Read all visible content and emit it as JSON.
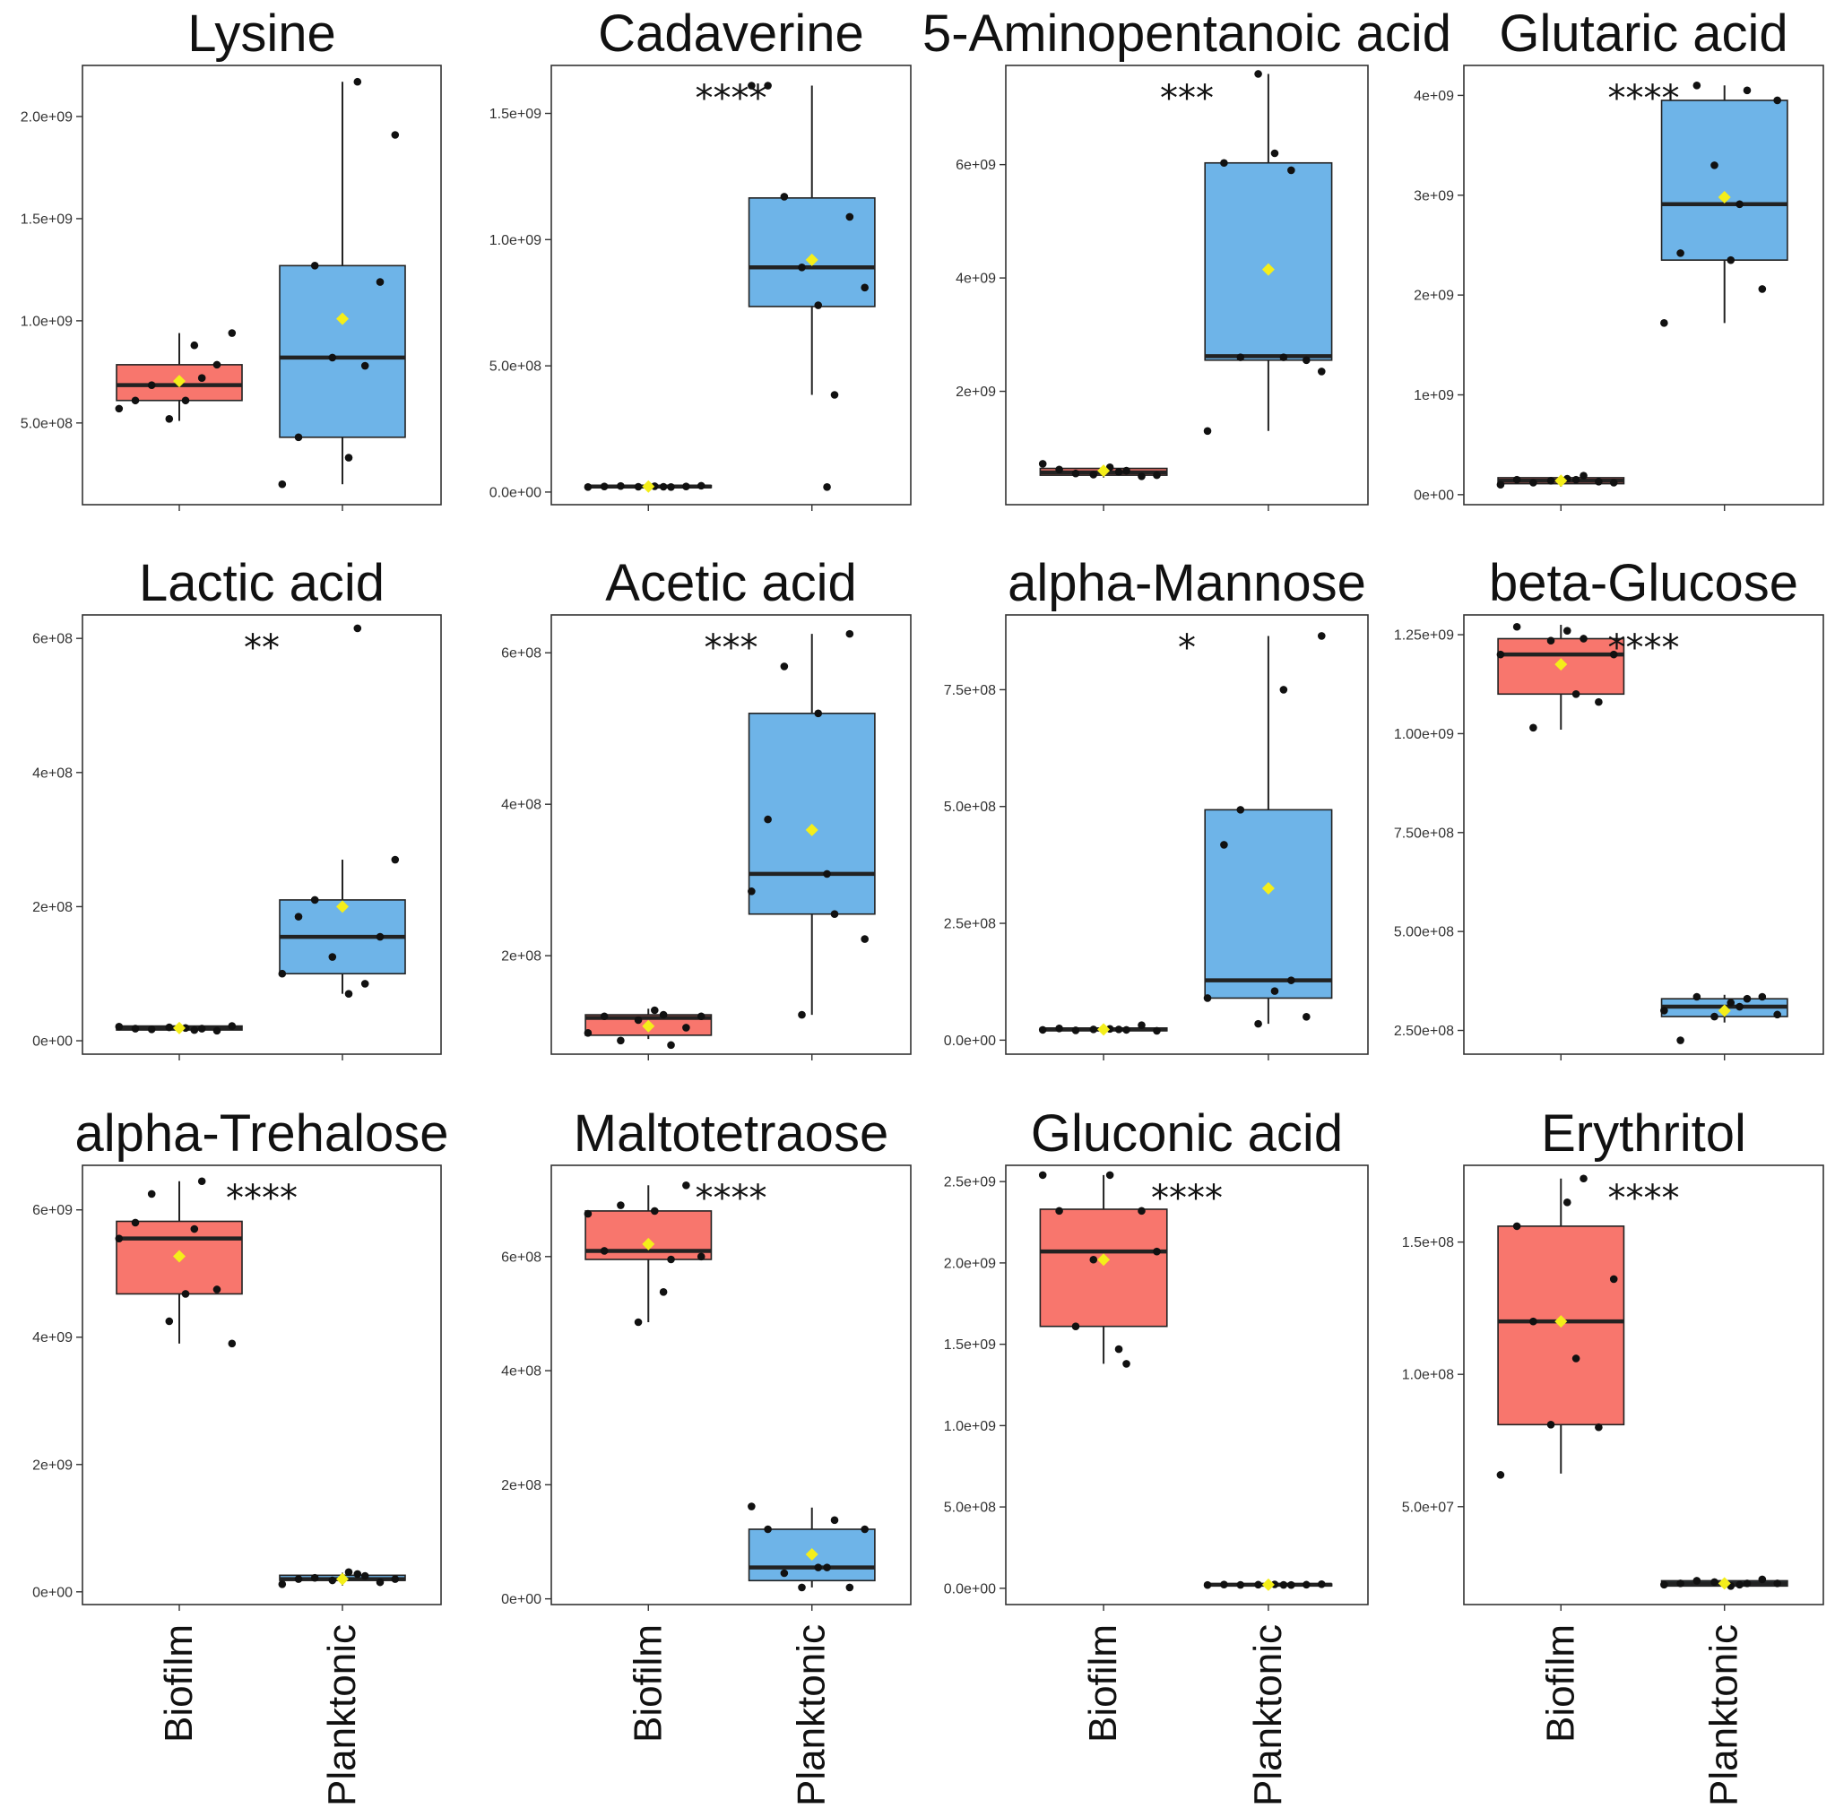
{
  "chart_data": [
    {
      "type": "boxplot",
      "title": "Lysine",
      "significance": "",
      "categories": [
        "Biofilm",
        "Planktonic"
      ],
      "ylim": [
        100000000.0,
        2250000000.0
      ],
      "yticks": [
        500000000.0,
        1000000000.0,
        1500000000.0,
        2000000000.0
      ],
      "ytick_labels": [
        "5.0e+08",
        "1.0e+09",
        "1.5e+09",
        "2.0e+09"
      ],
      "series": [
        {
          "name": "Biofilm",
          "color": "#f8766d",
          "q1": 610000000.0,
          "median": 685000000.0,
          "q3": 785000000.0,
          "whisker_low": 510000000.0,
          "whisker_high": 940000000.0,
          "mean": 705000000.0,
          "points": [
            570000000.0,
            610000000.0,
            685000000.0,
            520000000.0,
            610000000.0,
            720000000.0,
            785000000.0,
            940000000.0,
            880000000.0
          ]
        },
        {
          "name": "Planktonic",
          "color": "#6eb4e8",
          "q1": 430000000.0,
          "median": 820000000.0,
          "q3": 1270000000.0,
          "whisker_low": 200000000.0,
          "whisker_high": 2170000000.0,
          "mean": 1010000000.0,
          "points": [
            200000000.0,
            430000000.0,
            1270000000.0,
            820000000.0,
            330000000.0,
            780000000.0,
            1190000000.0,
            1910000000.0,
            2170000000.0
          ]
        }
      ]
    },
    {
      "type": "boxplot",
      "title": "Cadaverine",
      "significance": "****",
      "categories": [
        "Biofilm",
        "Planktonic"
      ],
      "ylim": [
        -50000000.0,
        1690000000.0
      ],
      "yticks": [
        0,
        500000000.0,
        1000000000.0,
        1500000000.0
      ],
      "ytick_labels": [
        "0.0e+00",
        "5.0e+08",
        "1.0e+09",
        "1.5e+09"
      ],
      "series": [
        {
          "name": "Biofilm",
          "color": "#f8766d",
          "q1": 18000000.0,
          "median": 22000000.0,
          "q3": 26000000.0,
          "whisker_low": 15000000.0,
          "whisker_high": 30000000.0,
          "mean": 22000000.0,
          "points": [
            20000000.0,
            22000000.0,
            24000000.0,
            21000000.0,
            23000000.0,
            20000000.0,
            22000000.0,
            25000000.0,
            21000000.0
          ]
        },
        {
          "name": "Planktonic",
          "color": "#6eb4e8",
          "q1": 735000000.0,
          "median": 890000000.0,
          "q3": 1165000000.0,
          "whisker_low": 385000000.0,
          "whisker_high": 1610000000.0,
          "mean": 920000000.0,
          "points": [
            1610000000.0,
            1610000000.0,
            1170000000.0,
            890000000.0,
            740000000.0,
            385000000.0,
            1090000000.0,
            810000000.0,
            20000000.0
          ]
        }
      ]
    },
    {
      "type": "boxplot",
      "title": "5-Aminopentanoic acid",
      "significance": "***",
      "categories": [
        "Biofilm",
        "Planktonic"
      ],
      "ylim": [
        0,
        7750000000.0
      ],
      "yticks": [
        2000000000.0,
        4000000000.0,
        6000000000.0
      ],
      "ytick_labels": [
        "2e+09",
        "4e+09",
        "6e+09"
      ],
      "series": [
        {
          "name": "Biofilm",
          "color": "#f8766d",
          "q1": 520000000.0,
          "median": 570000000.0,
          "q3": 640000000.0,
          "whisker_low": 480000000.0,
          "whisker_high": 680000000.0,
          "mean": 600000000.0,
          "points": [
            720000000.0,
            620000000.0,
            550000000.0,
            530000000.0,
            660000000.0,
            600000000.0,
            500000000.0,
            520000000.0,
            580000000.0
          ]
        },
        {
          "name": "Planktonic",
          "color": "#6eb4e8",
          "q1": 2550000000.0,
          "median": 2620000000.0,
          "q3": 6030000000.0,
          "whisker_low": 1300000000.0,
          "whisker_high": 7600000000.0,
          "mean": 4150000000.0,
          "points": [
            1300000000.0,
            6030000000.0,
            2600000000.0,
            7600000000.0,
            6200000000.0,
            5900000000.0,
            2550000000.0,
            2350000000.0,
            2600000000.0
          ]
        }
      ]
    },
    {
      "type": "boxplot",
      "title": "Glutaric acid",
      "significance": "****",
      "categories": [
        "Biofilm",
        "Planktonic"
      ],
      "ylim": [
        -100000000.0,
        4300000000.0
      ],
      "yticks": [
        0,
        1000000000.0,
        2000000000.0,
        3000000000.0,
        4000000000.0
      ],
      "ytick_labels": [
        "0e+00",
        "1e+09",
        "2e+09",
        "3e+09",
        "4e+09"
      ],
      "series": [
        {
          "name": "Biofilm",
          "color": "#f8766d",
          "q1": 110000000.0,
          "median": 140000000.0,
          "q3": 170000000.0,
          "whisker_low": 80000000.0,
          "whisker_high": 190000000.0,
          "mean": 140000000.0,
          "points": [
            100000000.0,
            150000000.0,
            120000000.0,
            140000000.0,
            160000000.0,
            190000000.0,
            130000000.0,
            120000000.0,
            150000000.0
          ]
        },
        {
          "name": "Planktonic",
          "color": "#6eb4e8",
          "q1": 2350000000.0,
          "median": 2910000000.0,
          "q3": 3950000000.0,
          "whisker_low": 1720000000.0,
          "whisker_high": 4100000000.0,
          "mean": 2980000000.0,
          "points": [
            1720000000.0,
            2420000000.0,
            4100000000.0,
            3300000000.0,
            2350000000.0,
            4050000000.0,
            2060000000.0,
            3950000000.0,
            2910000000.0
          ]
        }
      ]
    },
    {
      "type": "boxplot",
      "title": "Lactic acid",
      "significance": "**",
      "categories": [
        "Biofilm",
        "Planktonic"
      ],
      "ylim": [
        -20000000.0,
        635000000.0
      ],
      "yticks": [
        0,
        200000000.0,
        400000000.0,
        600000000.0
      ],
      "ytick_labels": [
        "0e+00",
        "2e+08",
        "4e+08",
        "6e+08"
      ],
      "series": [
        {
          "name": "Biofilm",
          "color": "#f8766d",
          "q1": 16000000.0,
          "median": 19000000.0,
          "q3": 22000000.0,
          "whisker_low": 13000000.0,
          "whisker_high": 25000000.0,
          "mean": 19000000.0,
          "points": [
            21000000.0,
            18000000.0,
            17000000.0,
            20000000.0,
            19000000.0,
            18000000.0,
            15000000.0,
            22000000.0,
            16000000.0
          ]
        },
        {
          "name": "Planktonic",
          "color": "#6eb4e8",
          "q1": 100000000.0,
          "median": 155000000.0,
          "q3": 210000000.0,
          "whisker_low": 70000000.0,
          "whisker_high": 270000000.0,
          "mean": 200000000.0,
          "points": [
            100000000.0,
            185000000.0,
            210000000.0,
            125000000.0,
            70000000.0,
            85000000.0,
            155000000.0,
            270000000.0,
            615000000.0
          ]
        }
      ]
    },
    {
      "type": "boxplot",
      "title": "Acetic acid",
      "significance": "***",
      "categories": [
        "Biofilm",
        "Planktonic"
      ],
      "ylim": [
        70000000.0,
        650000000.0
      ],
      "yticks": [
        200000000.0,
        400000000.0,
        600000000.0
      ],
      "ytick_labels": [
        "2e+08",
        "4e+08",
        "6e+08"
      ],
      "series": [
        {
          "name": "Biofilm",
          "color": "#f8766d",
          "q1": 95000000.0,
          "median": 118000000.0,
          "q3": 122000000.0,
          "whisker_low": 90000000.0,
          "whisker_high": 130000000.0,
          "mean": 107000000.0,
          "points": [
            98000000.0,
            120000000.0,
            88000000.0,
            115000000.0,
            128000000.0,
            82000000.0,
            105000000.0,
            120000000.0,
            122000000.0
          ]
        },
        {
          "name": "Planktonic",
          "color": "#6eb4e8",
          "q1": 255000000.0,
          "median": 308000000.0,
          "q3": 520000000.0,
          "whisker_low": 122000000.0,
          "whisker_high": 625000000.0,
          "mean": 366000000.0,
          "points": [
            285000000.0,
            380000000.0,
            582000000.0,
            122000000.0,
            520000000.0,
            255000000.0,
            625000000.0,
            222000000.0,
            308000000.0
          ]
        }
      ]
    },
    {
      "type": "boxplot",
      "title": "alpha-Mannose",
      "significance": "*",
      "categories": [
        "Biofilm",
        "Planktonic"
      ],
      "ylim": [
        -30000000.0,
        910000000.0
      ],
      "yticks": [
        0,
        250000000.0,
        500000000.0,
        750000000.0
      ],
      "ytick_labels": [
        "0.0e+00",
        "2.5e+08",
        "5.0e+08",
        "7.5e+08"
      ],
      "series": [
        {
          "name": "Biofilm",
          "color": "#f8766d",
          "q1": 20000000.0,
          "median": 23000000.0,
          "q3": 26000000.0,
          "whisker_low": 18000000.0,
          "whisker_high": 32000000.0,
          "mean": 23000000.0,
          "points": [
            22000000.0,
            25000000.0,
            21000000.0,
            23000000.0,
            24000000.0,
            22000000.0,
            32000000.0,
            20000000.0,
            23000000.0
          ]
        },
        {
          "name": "Planktonic",
          "color": "#6eb4e8",
          "q1": 90000000.0,
          "median": 128000000.0,
          "q3": 493000000.0,
          "whisker_low": 35000000.0,
          "whisker_high": 865000000.0,
          "mean": 325000000.0,
          "points": [
            90000000.0,
            418000000.0,
            493000000.0,
            35000000.0,
            105000000.0,
            128000000.0,
            50000000.0,
            865000000.0,
            750000000.0
          ]
        }
      ]
    },
    {
      "type": "boxplot",
      "title": "beta-Glucose",
      "significance": "****",
      "categories": [
        "Biofilm",
        "Planktonic"
      ],
      "ylim": [
        190000000.0,
        1300000000.0
      ],
      "yticks": [
        250000000.0,
        500000000.0,
        750000000.0,
        1000000000.0,
        1250000000.0
      ],
      "ytick_labels": [
        "2.50e+08",
        "5.00e+08",
        "7.50e+08",
        "1.00e+09",
        "1.25e+09"
      ],
      "series": [
        {
          "name": "Biofilm",
          "color": "#f8766d",
          "q1": 1100000000.0,
          "median": 1200000000.0,
          "q3": 1240000000.0,
          "whisker_low": 1010000000.0,
          "whisker_high": 1275000000.0,
          "mean": 1175000000.0,
          "points": [
            1200000000.0,
            1270000000.0,
            1015000000.0,
            1235000000.0,
            1260000000.0,
            1240000000.0,
            1080000000.0,
            1200000000.0,
            1100000000.0
          ]
        },
        {
          "name": "Planktonic",
          "color": "#6eb4e8",
          "q1": 285000000.0,
          "median": 310000000.0,
          "q3": 330000000.0,
          "whisker_low": 270000000.0,
          "whisker_high": 340000000.0,
          "mean": 300000000.0,
          "points": [
            300000000.0,
            225000000.0,
            335000000.0,
            285000000.0,
            320000000.0,
            330000000.0,
            335000000.0,
            290000000.0,
            310000000.0
          ]
        }
      ]
    },
    {
      "type": "boxplot",
      "title": "alpha-Trehalose",
      "significance": "****",
      "categories": [
        "Biofilm",
        "Planktonic"
      ],
      "ylim": [
        -200000000.0,
        6700000000.0
      ],
      "yticks": [
        0,
        2000000000.0,
        4000000000.0,
        6000000000.0
      ],
      "ytick_labels": [
        "0e+00",
        "2e+09",
        "4e+09",
        "6e+09"
      ],
      "series": [
        {
          "name": "Biofilm",
          "color": "#f8766d",
          "q1": 4680000000.0,
          "median": 5550000000.0,
          "q3": 5820000000.0,
          "whisker_low": 3900000000.0,
          "whisker_high": 6450000000.0,
          "mean": 5270000000.0,
          "points": [
            5550000000.0,
            5800000000.0,
            6250000000.0,
            4250000000.0,
            4680000000.0,
            6450000000.0,
            4750000000.0,
            3900000000.0,
            5700000000.0
          ]
        },
        {
          "name": "Planktonic",
          "color": "#6eb4e8",
          "q1": 180000000.0,
          "median": 200000000.0,
          "q3": 260000000.0,
          "whisker_low": 100000000.0,
          "whisker_high": 300000000.0,
          "mean": 200000000.0,
          "points": [
            120000000.0,
            200000000.0,
            220000000.0,
            180000000.0,
            310000000.0,
            250000000.0,
            150000000.0,
            200000000.0,
            280000000.0
          ]
        }
      ]
    },
    {
      "type": "boxplot",
      "title": "Maltotetraose",
      "significance": "****",
      "categories": [
        "Biofilm",
        "Planktonic"
      ],
      "ylim": [
        -10000000.0,
        760000000.0
      ],
      "yticks": [
        0,
        200000000.0,
        400000000.0,
        600000000.0
      ],
      "ytick_labels": [
        "0e+00",
        "2e+08",
        "4e+08",
        "6e+08"
      ],
      "series": [
        {
          "name": "Biofilm",
          "color": "#f8766d",
          "q1": 595000000.0,
          "median": 610000000.0,
          "q3": 680000000.0,
          "whisker_low": 485000000.0,
          "whisker_high": 725000000.0,
          "mean": 622000000.0,
          "points": [
            675000000.0,
            610000000.0,
            690000000.0,
            485000000.0,
            680000000.0,
            595000000.0,
            725000000.0,
            600000000.0,
            538000000.0
          ]
        },
        {
          "name": "Planktonic",
          "color": "#6eb4e8",
          "q1": 32000000.0,
          "median": 55000000.0,
          "q3": 122000000.0,
          "whisker_low": 20000000.0,
          "whisker_high": 160000000.0,
          "mean": 78000000.0,
          "points": [
            162000000.0,
            122000000.0,
            45000000.0,
            20000000.0,
            55000000.0,
            138000000.0,
            20000000.0,
            122000000.0,
            55000000.0
          ]
        }
      ]
    },
    {
      "type": "boxplot",
      "title": "Gluconic acid",
      "significance": "****",
      "categories": [
        "Biofilm",
        "Planktonic"
      ],
      "ylim": [
        -100000000.0,
        2600000000.0
      ],
      "yticks": [
        0,
        500000000.0,
        1000000000.0,
        1500000000.0,
        2000000000.0,
        2500000000.0
      ],
      "ytick_labels": [
        "0.0e+00",
        "5.0e+08",
        "1.0e+09",
        "1.5e+09",
        "2.0e+09",
        "2.5e+09"
      ],
      "series": [
        {
          "name": "Biofilm",
          "color": "#f8766d",
          "q1": 1610000000.0,
          "median": 2070000000.0,
          "q3": 2330000000.0,
          "whisker_low": 1380000000.0,
          "whisker_high": 2540000000.0,
          "mean": 2020000000.0,
          "points": [
            2540000000.0,
            2320000000.0,
            1610000000.0,
            2020000000.0,
            2540000000.0,
            1380000000.0,
            2320000000.0,
            2070000000.0,
            1470000000.0
          ]
        },
        {
          "name": "Planktonic",
          "color": "#6eb4e8",
          "q1": 18000000.0,
          "median": 22000000.0,
          "q3": 26000000.0,
          "whisker_low": 15000000.0,
          "whisker_high": 30000000.0,
          "mean": 22000000.0,
          "points": [
            20000000.0,
            23000000.0,
            21000000.0,
            22000000.0,
            24000000.0,
            20000000.0,
            22000000.0,
            25000000.0,
            21000000.0
          ]
        }
      ]
    },
    {
      "type": "boxplot",
      "title": "Erythritol",
      "significance": "****",
      "categories": [
        "Biofilm",
        "Planktonic"
      ],
      "ylim": [
        13000000.0,
        179000000.0
      ],
      "yticks": [
        50000000.0,
        100000000.0,
        150000000.0
      ],
      "ytick_labels": [
        "5.0e+07",
        "1.0e+08",
        "1.5e+08"
      ],
      "series": [
        {
          "name": "Biofilm",
          "color": "#f8766d",
          "q1": 81000000.0,
          "median": 120000000.0,
          "q3": 156000000.0,
          "whisker_low": 62500000.0,
          "whisker_high": 174000000.0,
          "mean": 120000000.0,
          "points": [
            62000000.0,
            156000000.0,
            120000000.0,
            81000000.0,
            165000000.0,
            174000000.0,
            80000000.0,
            136000000.0,
            106000000.0
          ]
        },
        {
          "name": "Planktonic",
          "color": "#6eb4e8",
          "q1": 20000000.0,
          "median": 21000000.0,
          "q3": 22000000.0,
          "whisker_low": 19500000.0,
          "whisker_high": 23000000.0,
          "mean": 21000000.0,
          "points": [
            20500000.0,
            21000000.0,
            22000000.0,
            21500000.0,
            20000000.0,
            21000000.0,
            22500000.0,
            21000000.0,
            20500000.0
          ]
        }
      ]
    }
  ]
}
